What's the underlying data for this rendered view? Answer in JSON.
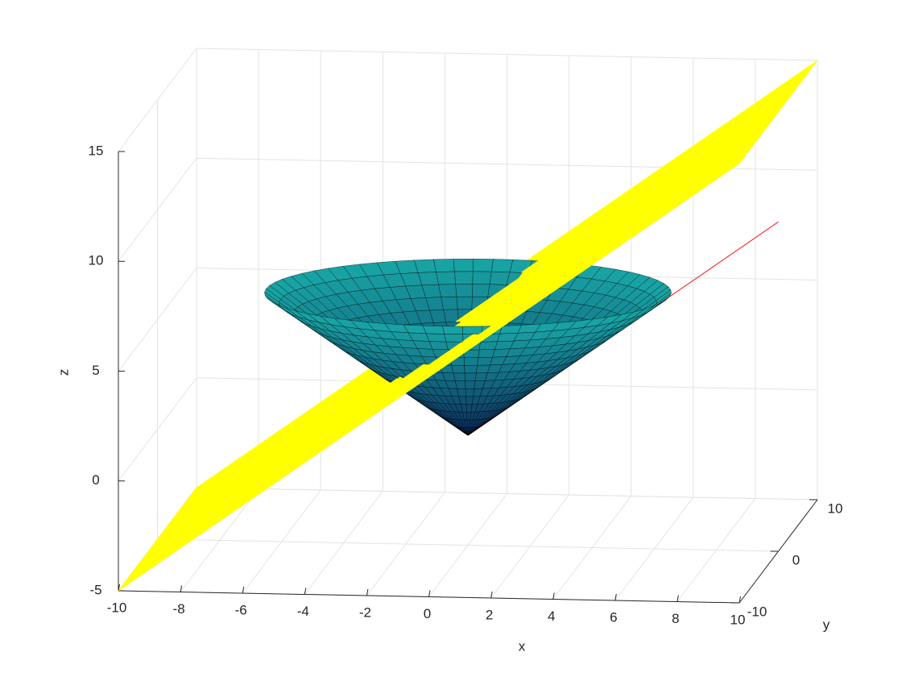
{
  "chart_data": {
    "type": "surface3d",
    "xlabel": "x",
    "ylabel": "y",
    "zlabel": "z",
    "xlim": [
      -10,
      10
    ],
    "ylim": [
      -10,
      10
    ],
    "zlim": [
      -5,
      15
    ],
    "xticks": [
      -10,
      -8,
      -6,
      -4,
      -2,
      0,
      2,
      4,
      6,
      8,
      10
    ],
    "yticks": [
      -10,
      0,
      10
    ],
    "zticks": [
      -5,
      0,
      5,
      10,
      15
    ],
    "grid": true,
    "surfaces": [
      {
        "kind": "cone",
        "apex": [
          0,
          0,
          0
        ],
        "radius": 6.5,
        "height": 6.5,
        "colors": [
          "#0b2a5a",
          "#18a6a6"
        ]
      },
      {
        "kind": "plane",
        "corners": [
          [
            -10,
            -10,
            -5
          ],
          [
            10,
            -10,
            15
          ],
          [
            10,
            10,
            15
          ],
          [
            -10,
            10,
            -5
          ]
        ],
        "color": "#ffff00"
      }
    ],
    "lines": [
      {
        "color": "#ff0000",
        "points": [
          [
            0,
            0,
            0
          ],
          [
            10,
            0,
            10
          ]
        ]
      }
    ]
  }
}
